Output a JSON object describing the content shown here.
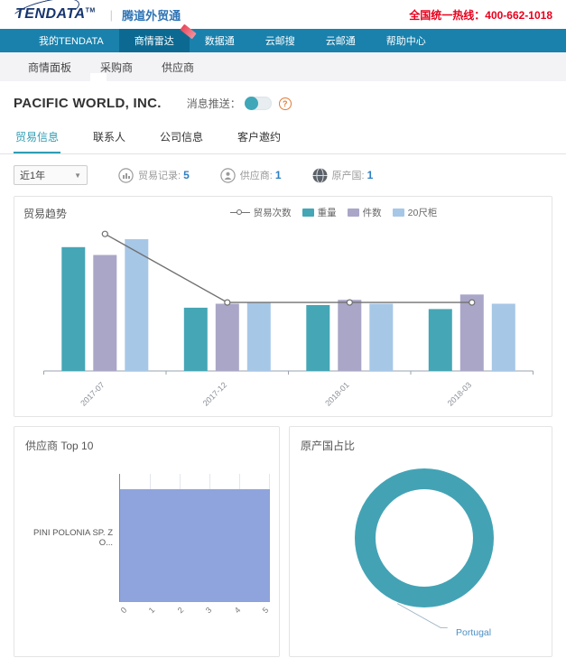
{
  "header": {
    "logo_text": "TENDATA",
    "logo_tm": "TM",
    "logo_product": "腾道外贸通",
    "hotline": "全国统一热线：400-662-1018"
  },
  "nav": {
    "items": [
      {
        "label": "我的TENDATA",
        "active": false
      },
      {
        "label": "商情雷达",
        "active": true,
        "badge": "new-ribbon"
      },
      {
        "label": "数据通",
        "active": false
      },
      {
        "label": "云邮搜",
        "active": false
      },
      {
        "label": "云邮通",
        "active": false
      },
      {
        "label": "帮助中心",
        "active": false
      }
    ]
  },
  "subnav": {
    "items": [
      "商情面板",
      "采购商",
      "供应商"
    ],
    "active": "采购商"
  },
  "company": {
    "name": "PACIFIC WORLD, INC.",
    "push_label": "消息推送：",
    "push_on": true,
    "help_glyph": "?"
  },
  "tabs": {
    "items": [
      "贸易信息",
      "联系人",
      "公司信息",
      "客户邀约"
    ],
    "active": "贸易信息"
  },
  "filters": {
    "period": "近1年",
    "caret": "▼"
  },
  "stats": [
    {
      "icon": "trade-records-icon",
      "label": "贸易记录:",
      "value": "5"
    },
    {
      "icon": "suppliers-icon",
      "label": "供应商:",
      "value": "1"
    },
    {
      "icon": "globe-icon",
      "label": "原产国:",
      "value": "1"
    }
  ],
  "colors": {
    "nav_bg": "#1981ac",
    "nav_active_bg": "#0c6a92",
    "hotline_red": "#e8001c",
    "accent_teal": "#2f9db4",
    "bar_weight": "#45a6b5",
    "bar_pieces": "#a9a6c7",
    "bar_20ft": "#a7c7e7",
    "trend_line": "#707070",
    "supplier_bar": "#8fa4dc",
    "donut": "#43a3b5",
    "stat_value_blue": "#2f7fc1"
  },
  "chart_data": [
    {
      "id": "trade_trend",
      "type": "bar",
      "title": "贸易趋势",
      "categories": [
        "2017-07",
        "2017-12",
        "2018-01",
        "2018-03"
      ],
      "series": [
        {
          "name": "重量",
          "color": "#45a6b5",
          "values_pct": [
            94,
            48,
            50,
            47
          ]
        },
        {
          "name": "件数",
          "color": "#a9a6c7",
          "values_pct": [
            88,
            51,
            54,
            58
          ]
        },
        {
          "name": "20尺柜",
          "color": "#a7c7e7",
          "values_pct": [
            100,
            52,
            51,
            51
          ]
        }
      ],
      "line_series": {
        "name": "贸易次数",
        "color": "#707070",
        "values": [
          2,
          1,
          1,
          1
        ]
      },
      "note": "y-axis unlabeled in source; bar values stored as % of tallest bar",
      "legend_position": "top",
      "grid": false
    },
    {
      "id": "suppliers_top10",
      "type": "bar",
      "orientation": "horizontal",
      "title": "供应商 Top 10",
      "categories": [
        "PINI POLONIA SP. Z O..."
      ],
      "values": [
        5
      ],
      "xlim": [
        0,
        5
      ],
      "x_ticks": [
        "0",
        "1",
        "2",
        "3",
        "4",
        "5"
      ],
      "bar_color": "#8fa4dc",
      "grid": true
    },
    {
      "id": "origin_country_share",
      "type": "pie",
      "title": "原产国占比",
      "slices": [
        {
          "label": "Portugal",
          "value": 100
        }
      ],
      "color": "#43a3b5",
      "donut": true
    }
  ]
}
